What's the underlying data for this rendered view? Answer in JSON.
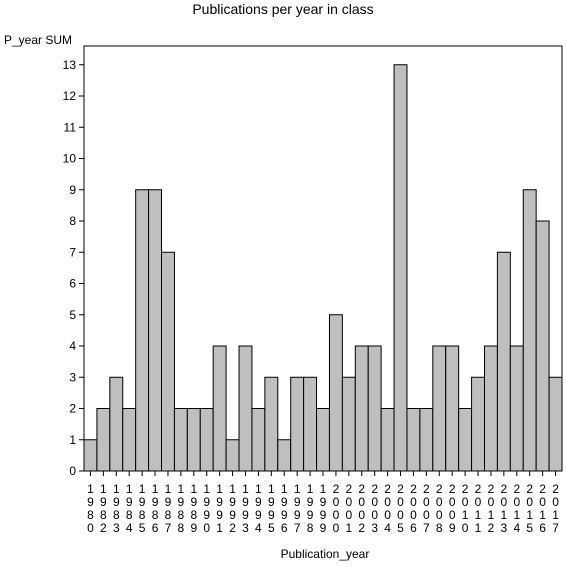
{
  "chart_data": {
    "type": "bar",
    "title": "Publications per year in class",
    "ylabel": "P_year SUM",
    "xlabel": "Publication_year",
    "ylim": [
      0,
      13.6
    ],
    "yticks": [
      0,
      1,
      2,
      3,
      4,
      5,
      6,
      7,
      8,
      9,
      10,
      11,
      12,
      13
    ],
    "categories": [
      "1980",
      "1982",
      "1983",
      "1984",
      "1985",
      "1986",
      "1987",
      "1988",
      "1989",
      "1990",
      "1991",
      "1992",
      "1993",
      "1994",
      "1995",
      "1996",
      "1997",
      "1998",
      "1999",
      "2000",
      "2001",
      "2002",
      "2003",
      "2004",
      "2005",
      "2006",
      "2007",
      "2008",
      "2009",
      "2010",
      "2011",
      "2012",
      "2013",
      "2014",
      "2015",
      "2016",
      "2017"
    ],
    "values": [
      1,
      2,
      3,
      2,
      9,
      9,
      7,
      2,
      2,
      2,
      4,
      1,
      4,
      2,
      3,
      1,
      3,
      3,
      2,
      5,
      3,
      4,
      4,
      2,
      13,
      2,
      2,
      4,
      4,
      2,
      3,
      4,
      7,
      4,
      9,
      8,
      3
    ],
    "grid": false,
    "colors": {
      "bar": "#bfbfbf",
      "stroke": "#000000"
    }
  }
}
